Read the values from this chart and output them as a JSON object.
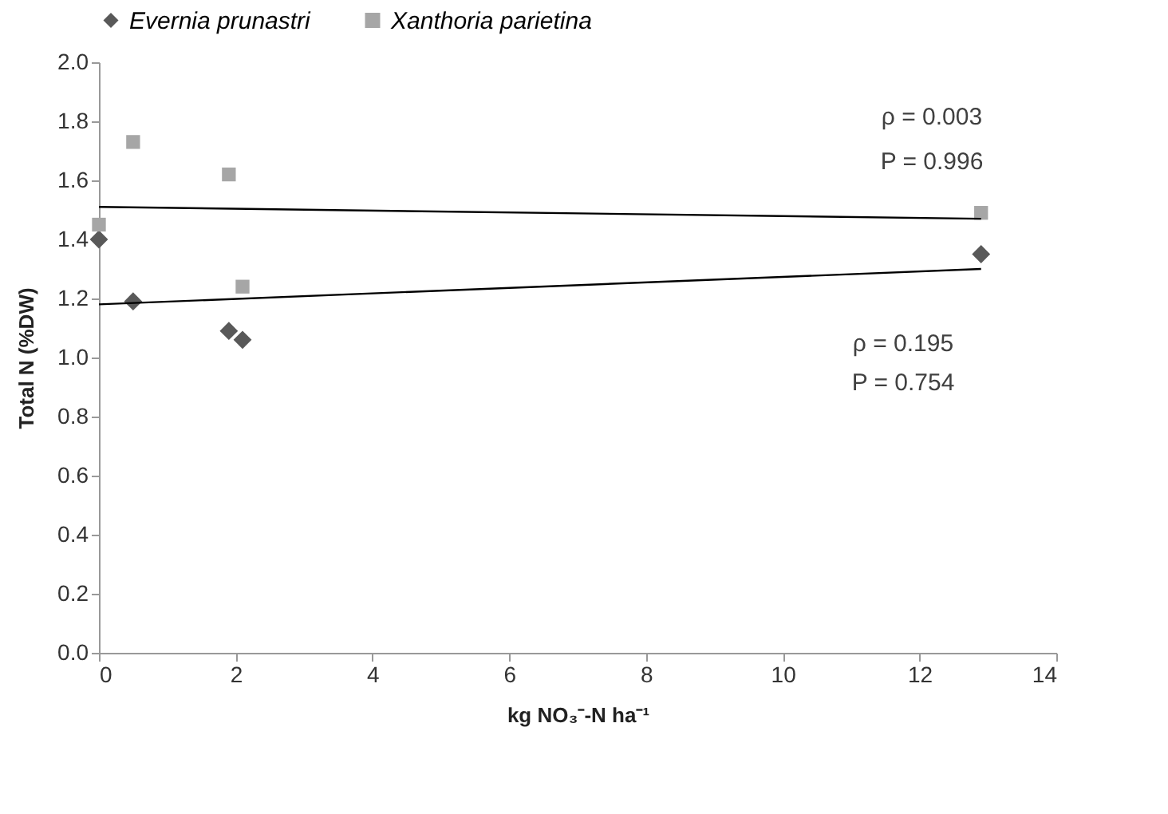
{
  "chart_data": {
    "type": "scatter",
    "xlabel": "kg NO₃⁻-N ha⁻¹",
    "ylabel": "Total N (%DW)",
    "xlim": [
      0,
      14
    ],
    "xticks": [
      0,
      2,
      4,
      6,
      8,
      10,
      12,
      14
    ],
    "ylim": [
      0,
      2.0
    ],
    "yticks": [
      {
        "value": 0,
        "label": "0.0"
      },
      {
        "value": 0.2,
        "label": "0.2"
      },
      {
        "value": 0.4,
        "label": "0.4"
      },
      {
        "value": 0.6,
        "label": "0.6"
      },
      {
        "value": 0.8,
        "label": "0.8"
      },
      {
        "value": 1.0,
        "label": "1.0"
      },
      {
        "value": 1.2,
        "label": "1.2"
      },
      {
        "value": 1.4,
        "label": "1.4"
      },
      {
        "value": 1.6,
        "label": "1.6"
      },
      {
        "value": 1.8,
        "label": "1.8"
      },
      {
        "value": 2.0,
        "label": "2.0"
      }
    ],
    "grid": false,
    "legend": "top",
    "series": [
      {
        "name": "Evernia prunastri",
        "marker": "diamond",
        "color": "#595959",
        "x": [
          0,
          0.5,
          1.9,
          2.1,
          12.9
        ],
        "values": [
          1.4,
          1.19,
          1.09,
          1.06,
          1.35
        ]
      },
      {
        "name": "Xanthoria parietina",
        "marker": "square",
        "color": "#a6a6a6",
        "x": [
          0,
          0.5,
          1.9,
          2.1,
          12.9
        ],
        "values": [
          1.45,
          1.73,
          1.62,
          1.24,
          1.49
        ]
      },
      {
        "type": "line",
        "line_style": "solid",
        "color": "#000000",
        "x": [
          0,
          12.9
        ],
        "values": [
          1.18,
          1.3
        ]
      },
      {
        "type": "line",
        "line_style": "solid",
        "color": "#000000",
        "x": [
          0,
          12.9
        ],
        "values": [
          1.51,
          1.47
        ]
      }
    ],
    "annotations": [
      "ρ = 0.003",
      "P = 0.996",
      "ρ = 0.195",
      "P = 0.754"
    ]
  }
}
